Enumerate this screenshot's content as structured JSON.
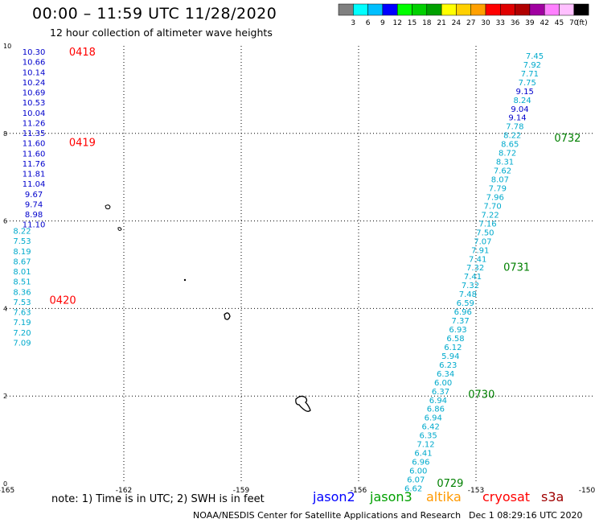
{
  "header": {
    "title": "00:00 – 11:59 UTC 11/28/2020",
    "subtitle": "12 hour collection of altimeter wave heights"
  },
  "colorbar": {
    "labels": [
      "3",
      "6",
      "9",
      "12",
      "15",
      "18",
      "21",
      "24",
      "27",
      "30",
      "33",
      "36",
      "39",
      "42",
      "45",
      "70"
    ],
    "unit": "(ft)",
    "colors": [
      "#808080",
      "#00ffff",
      "#00bfff",
      "#0000ff",
      "#00ff00",
      "#00d000",
      "#00a000",
      "#ffff00",
      "#ffd000",
      "#ffa000",
      "#ff0000",
      "#e00000",
      "#b00000",
      "#a000a0",
      "#ff80ff",
      "#ffc0ff",
      "#000000"
    ]
  },
  "map": {
    "x_ticks": [
      "-165",
      "-162",
      "-159",
      "-156",
      "-153",
      "-150"
    ],
    "y_ticks": [
      "0",
      "2",
      "4",
      "6",
      "8",
      "10"
    ],
    "lon_range": [
      -165,
      -150
    ],
    "lat_range": [
      0,
      10
    ]
  },
  "tracks": [
    {
      "color": "#0000cc",
      "lon": -164.3,
      "lat_top": 9.87,
      "lat_step": 0.232,
      "values": [
        "10.30",
        "10.66",
        "10.14",
        "10.24",
        "10.69",
        "10.53",
        "10.04",
        "11.26",
        "11.35",
        "11.60",
        "11.60",
        "11.76",
        "11.81",
        "11.04",
        "9.67",
        "9.74",
        "8.98",
        "11.10"
      ]
    },
    {
      "color": "#00aacc",
      "lon": -164.6,
      "lat_top": 5.78,
      "lat_step": 0.232,
      "values": [
        "8.22",
        "7.53",
        "8.19",
        "8.67",
        "8.01",
        "8.51",
        "8.36",
        "7.53",
        "7.63",
        "7.19",
        "7.20",
        "7.09"
      ]
    },
    {
      "color": "#00aacc",
      "lon_top": -151.5,
      "lon_bottom": -154.6,
      "lat_top": 9.78,
      "lat_bottom": -0.1,
      "values": [
        "7.45",
        "7.92",
        "7.71",
        "7.75",
        "9.15",
        "8.24",
        "9.04",
        "9.14",
        "7.78",
        "8.22",
        "8.65",
        "8.72",
        "8.31",
        "7.62",
        "8.07",
        "7.79",
        "7.96",
        "7.70",
        "7.22",
        "7.16",
        "7.50",
        "7.07",
        "7.91",
        "7.41",
        "7.32",
        "7.41",
        "7.32",
        "7.48",
        "6.59",
        "6.96",
        "7.37",
        "6.93",
        "6.58",
        "6.12",
        "5.94",
        "6.23",
        "6.34",
        "6.00",
        "6.37",
        "6.94",
        "6.86",
        "6.94",
        "6.42",
        "6.35",
        "7.12",
        "6.41",
        "6.96",
        "6.00",
        "6.07",
        "6.62"
      ],
      "dark_values_idx": [
        4,
        6,
        7
      ]
    }
  ],
  "time_labels": [
    {
      "text": "0418",
      "color": "#ff0000",
      "lon": -163.4,
      "lat": 9.87
    },
    {
      "text": "0419",
      "color": "#ff0000",
      "lon": -163.4,
      "lat": 7.8
    },
    {
      "text": "0420",
      "color": "#ff0000",
      "lon": -163.9,
      "lat": 4.2
    },
    {
      "text": "0732",
      "color": "#008000",
      "lon": -151.0,
      "lat": 7.9
    },
    {
      "text": "0731",
      "color": "#008000",
      "lon": -152.3,
      "lat": 4.95
    },
    {
      "text": "0730",
      "color": "#008000",
      "lon": -153.2,
      "lat": 2.05
    },
    {
      "text": "0729",
      "color": "#008000",
      "lon": -154.0,
      "lat": 0.02
    }
  ],
  "footer": {
    "note": "note:  1) Time is in UTC;  2) SWH is in feet",
    "satellites": [
      {
        "name": "jason2",
        "color": "#0000ff"
      },
      {
        "name": "jason3",
        "color": "#00a000"
      },
      {
        "name": "altika",
        "color": "#ff9900"
      },
      {
        "name": "cryosat",
        "color": "#ff0000"
      },
      {
        "name": "s3a",
        "color": "#a00000"
      }
    ],
    "center": "NOAA/NESDIS Center for Satellite Applications and Research",
    "date": "Dec  1 08:29:16 UTC 2020"
  }
}
